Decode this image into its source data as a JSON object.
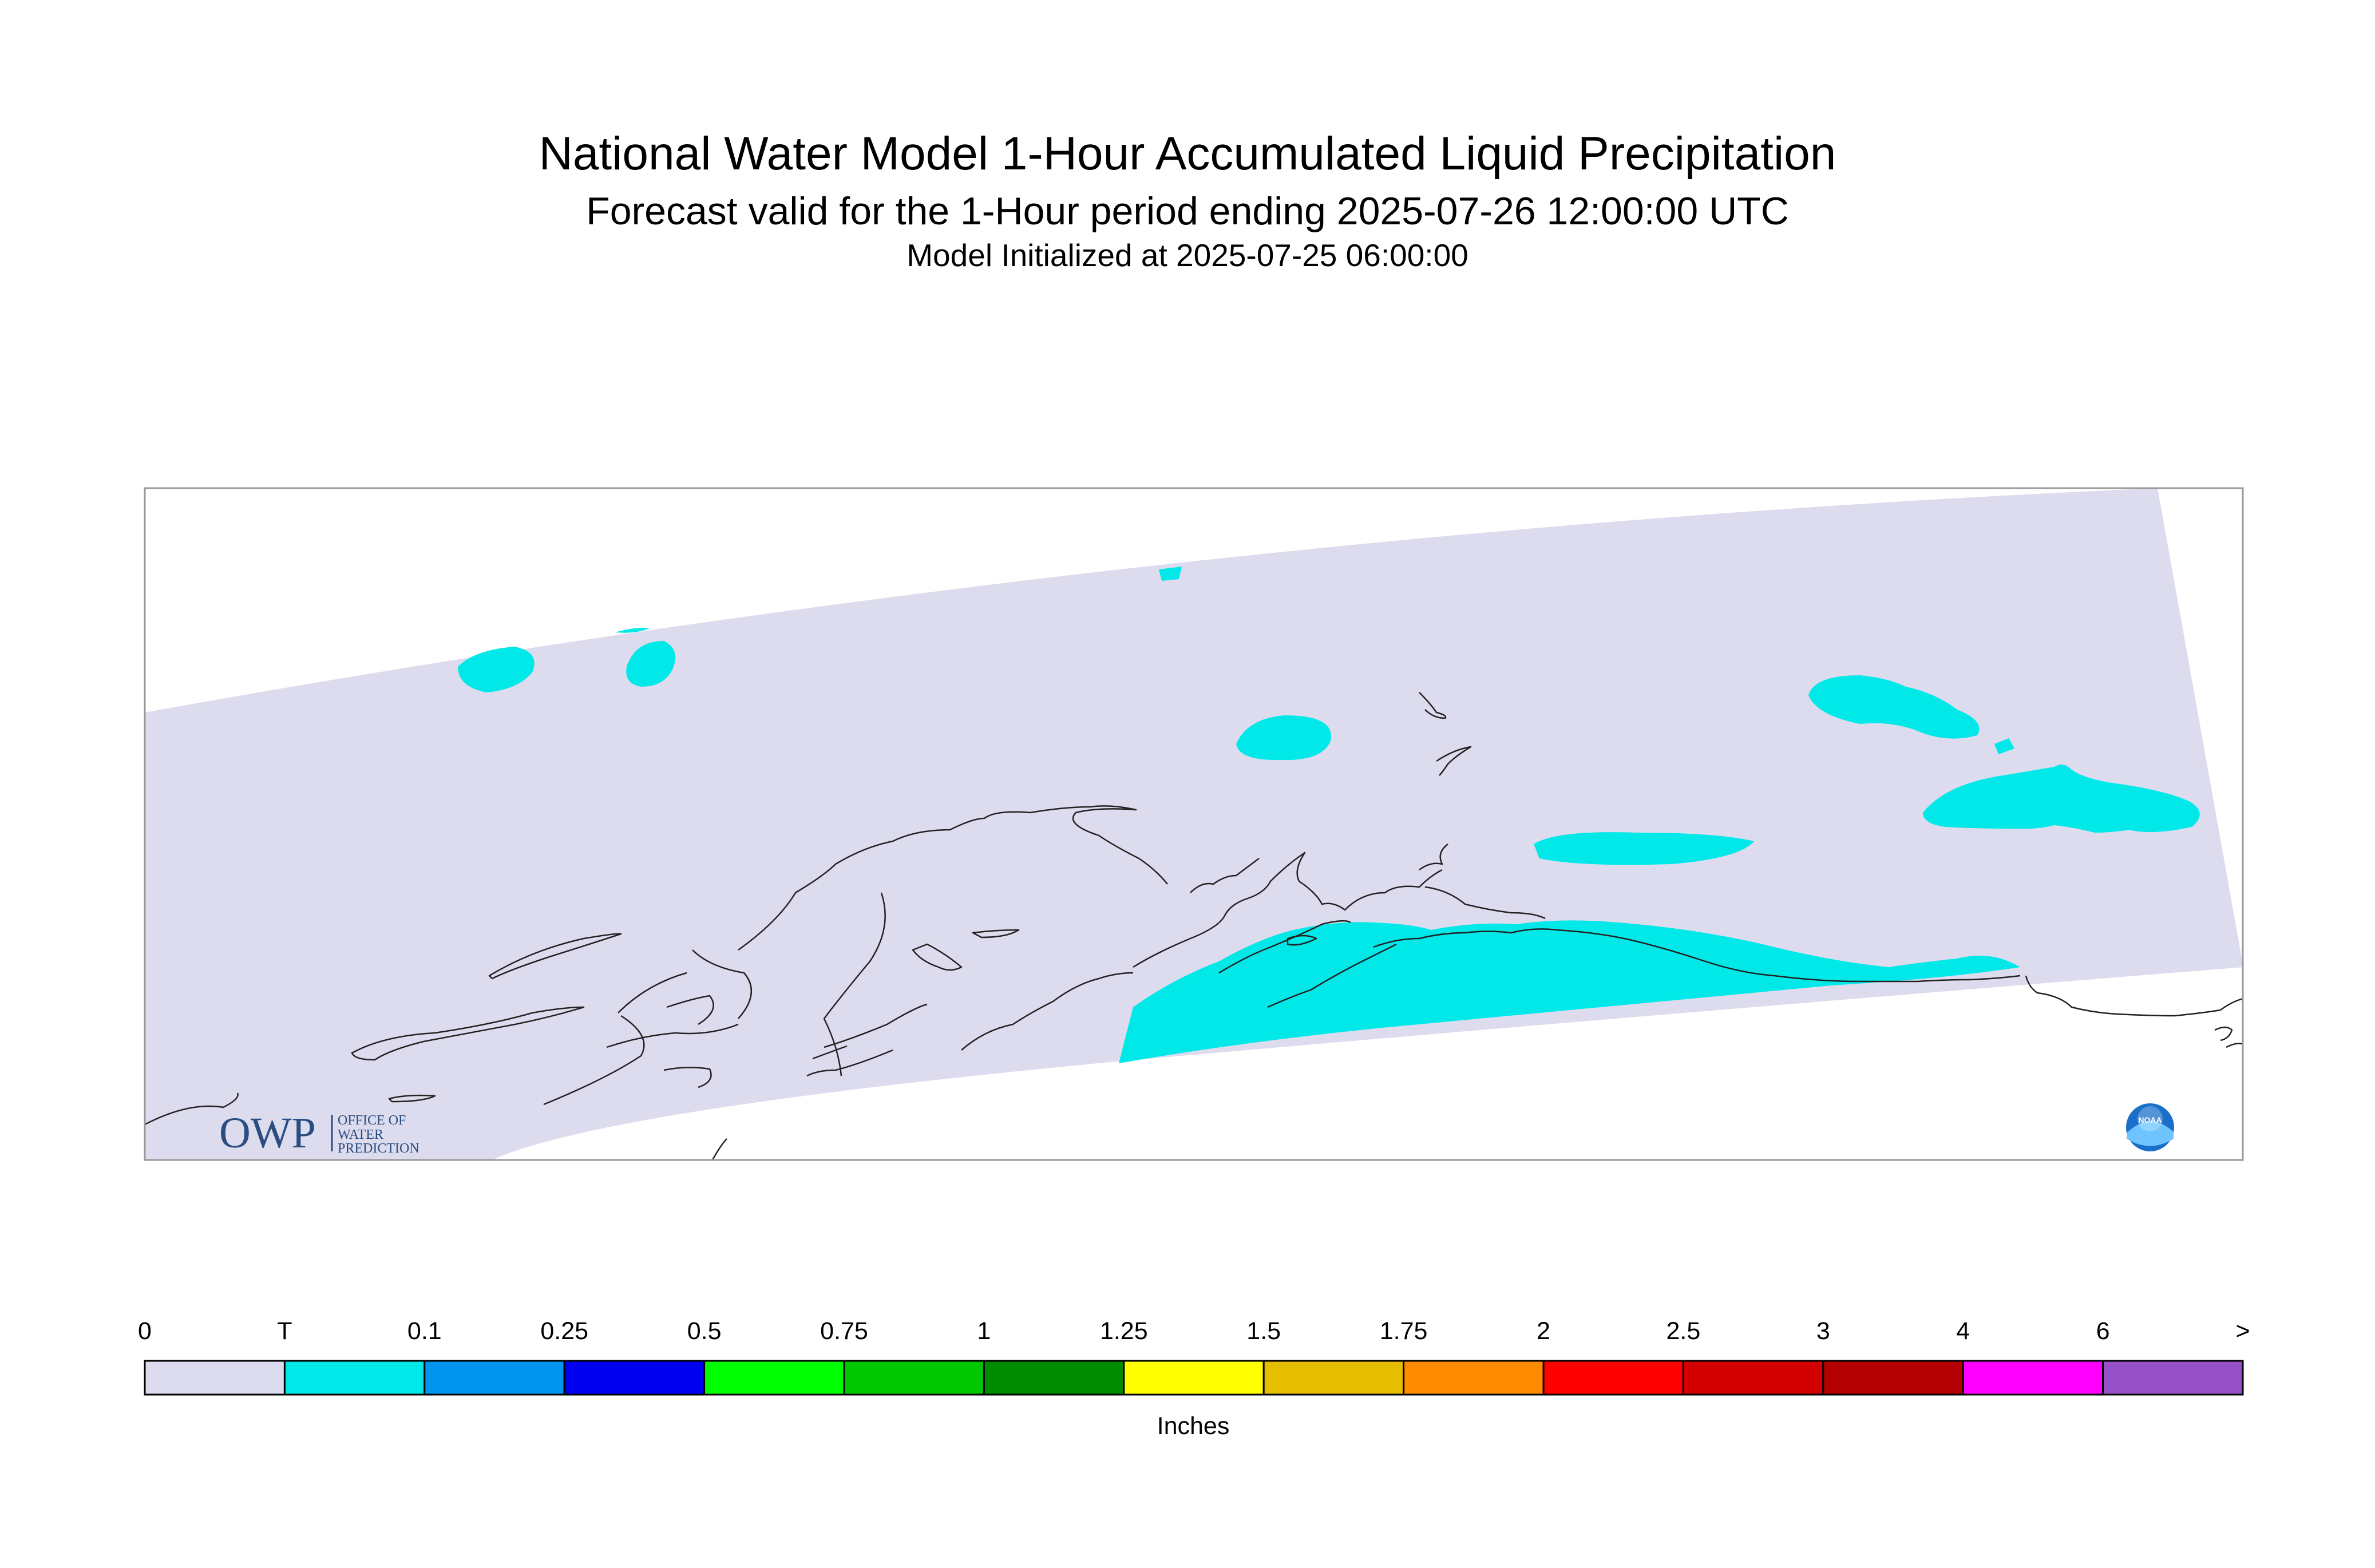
{
  "title": "National Water Model 1-Hour Accumulated Liquid Precipitation",
  "subtitle": "Forecast valid for the 1-Hour period ending 2025-07-26 12:00:00 UTC",
  "init": "Model Initialized at 2025-07-25 06:00:00",
  "legend": {
    "unit": "Inches",
    "labels": [
      "0",
      "T",
      "0.1",
      "0.25",
      "0.5",
      "0.75",
      "1",
      "1.25",
      "1.5",
      "1.75",
      "2",
      "2.5",
      "3",
      "4",
      "6",
      ">"
    ],
    "colors": [
      "#dcdcee",
      "#00e8e8",
      "#0096f0",
      "#0000f0",
      "#00ff00",
      "#00c800",
      "#008c00",
      "#ffff00",
      "#e6be00",
      "#ff8c00",
      "#ff0000",
      "#d20000",
      "#b40000",
      "#ff00ff",
      "#9650c8"
    ]
  },
  "logos": {
    "owp": {
      "mark": "OWP",
      "line1": "OFFICE OF",
      "line2": "WATER",
      "line3": "PREDICTION"
    },
    "noaa": {
      "mark": "NOAA"
    }
  }
}
